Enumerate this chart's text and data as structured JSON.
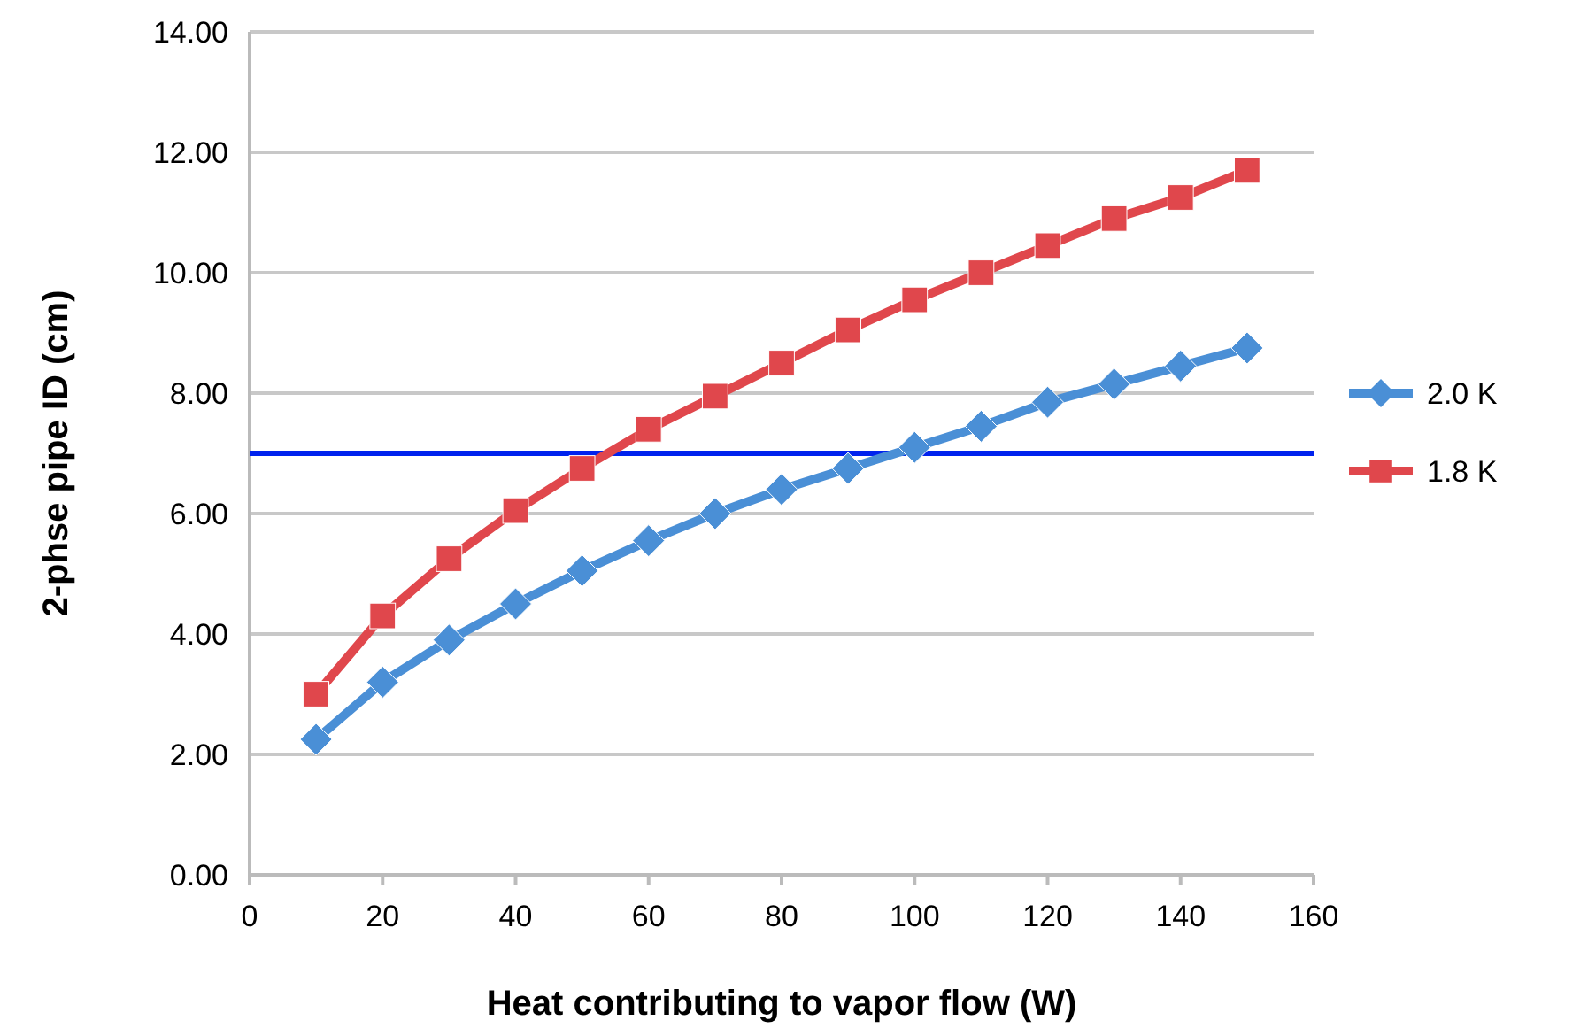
{
  "chart_data": {
    "type": "line",
    "xlabel": "Heat contributing to vapor flow (W)",
    "ylabel": "2-phse pipe ID (cm)",
    "x": [
      10,
      20,
      30,
      40,
      50,
      60,
      70,
      80,
      90,
      100,
      110,
      120,
      130,
      140,
      150
    ],
    "series": [
      {
        "name": "2.0 K",
        "color": "#4a8fd6",
        "marker": "diamond",
        "values": [
          2.25,
          3.2,
          3.9,
          4.5,
          5.05,
          5.55,
          6.0,
          6.4,
          6.75,
          7.1,
          7.45,
          7.85,
          8.15,
          8.45,
          8.75
        ]
      },
      {
        "name": "1.8 K",
        "color": "#e0474c",
        "marker": "square",
        "values": [
          3.0,
          4.3,
          5.25,
          6.05,
          6.75,
          7.4,
          7.95,
          8.5,
          9.05,
          9.55,
          10.0,
          10.45,
          10.9,
          11.25,
          11.7
        ]
      }
    ],
    "xlim": [
      0,
      160
    ],
    "xticks": [
      0,
      20,
      40,
      60,
      80,
      100,
      120,
      140,
      160
    ],
    "ylim": [
      0,
      14
    ],
    "yticks": [
      {
        "value": 0,
        "label": "0.00"
      },
      {
        "value": 2,
        "label": "2.00"
      },
      {
        "value": 4,
        "label": "4.00"
      },
      {
        "value": 6,
        "label": "6.00"
      },
      {
        "value": 8,
        "label": "8.00"
      },
      {
        "value": 10,
        "label": "10.00"
      },
      {
        "value": 12,
        "label": "12.00"
      },
      {
        "value": 14,
        "label": "14.00"
      }
    ],
    "grid": "y",
    "legend": "right",
    "line_style": "solid",
    "ref_lines": [
      {
        "axis": "y",
        "value": 7.0,
        "color": "#0022ee"
      }
    ]
  }
}
